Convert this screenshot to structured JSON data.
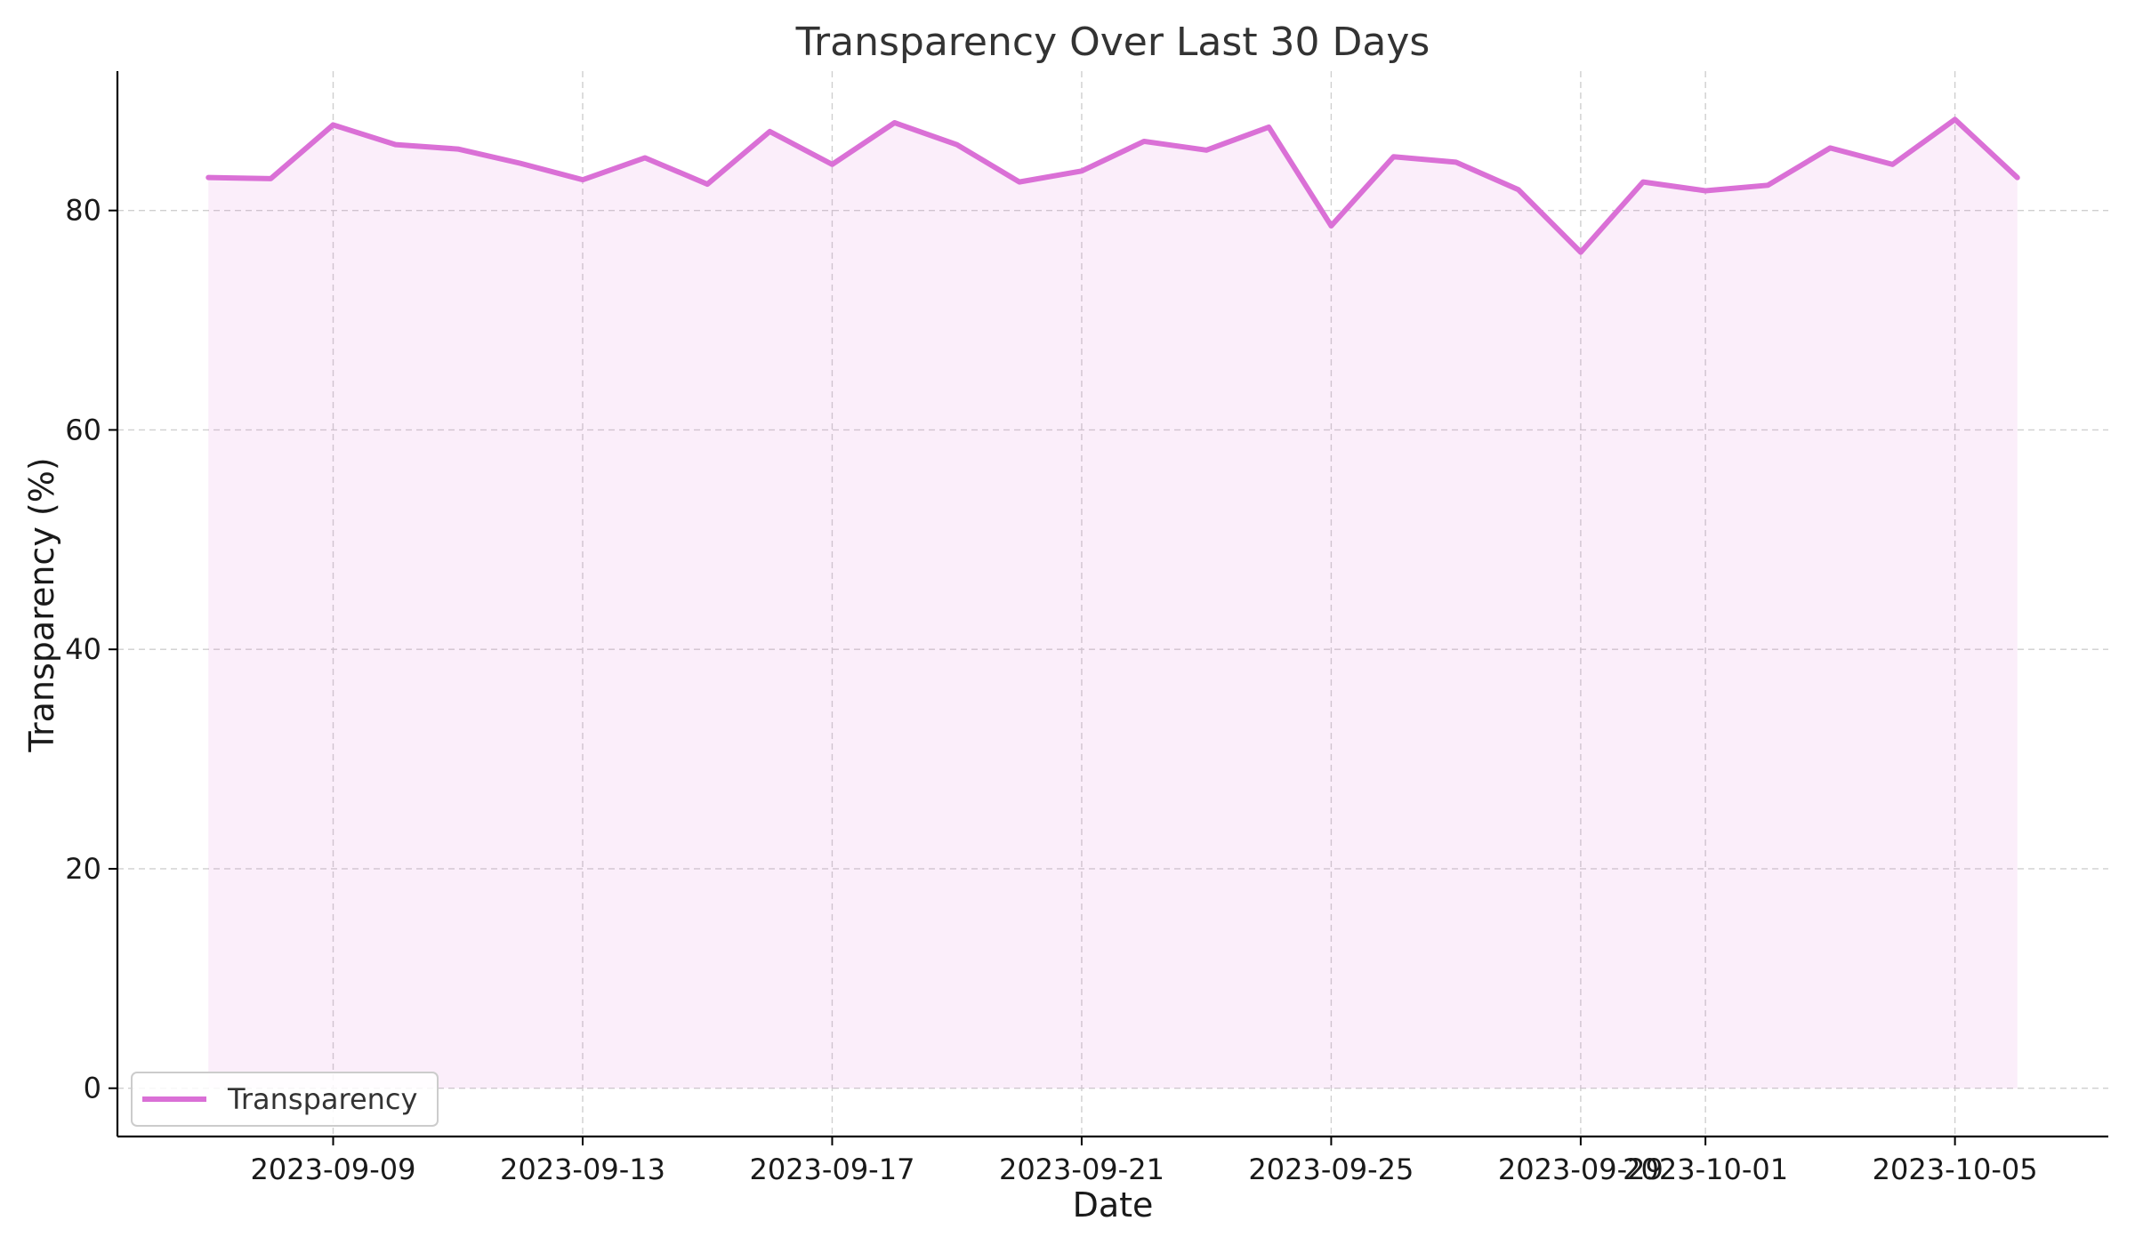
{
  "chart_data": {
    "type": "area",
    "title": "Transparency Over Last 30 Days",
    "xlabel": "Date",
    "ylabel": "Transparency (%)",
    "x": [
      "2023-09-07",
      "2023-09-08",
      "2023-09-09",
      "2023-09-10",
      "2023-09-11",
      "2023-09-12",
      "2023-09-13",
      "2023-09-14",
      "2023-09-15",
      "2023-09-16",
      "2023-09-17",
      "2023-09-18",
      "2023-09-19",
      "2023-09-20",
      "2023-09-21",
      "2023-09-22",
      "2023-09-23",
      "2023-09-24",
      "2023-09-25",
      "2023-09-26",
      "2023-09-27",
      "2023-09-28",
      "2023-09-29",
      "2023-09-30",
      "2023-10-01",
      "2023-10-02",
      "2023-10-03",
      "2023-10-04",
      "2023-10-05",
      "2023-10-06"
    ],
    "series": [
      {
        "name": "Transparency",
        "color": "#da70d6",
        "values": [
          83.0,
          82.9,
          87.8,
          86.0,
          85.6,
          84.3,
          82.8,
          84.8,
          82.4,
          87.2,
          84.2,
          88.0,
          86.0,
          82.6,
          83.6,
          86.3,
          85.5,
          87.6,
          78.6,
          84.9,
          84.4,
          81.9,
          76.2,
          82.6,
          81.8,
          82.3,
          85.7,
          84.2,
          88.3,
          83.0
        ]
      }
    ],
    "xticks": [
      "2023-09-09",
      "2023-09-13",
      "2023-09-17",
      "2023-09-21",
      "2023-09-25",
      "2023-09-29",
      "2023-10-01",
      "2023-10-05"
    ],
    "yticks": [
      0,
      20,
      40,
      60,
      80
    ],
    "ylim": [
      -4.4,
      92.7
    ],
    "xlim": [
      "2023-09-05T13:00",
      "2023-10-07T11:00"
    ],
    "grid": true,
    "legend_position": "lower-left",
    "fill_color": "#da70d6",
    "fill_opacity": 0.12
  }
}
